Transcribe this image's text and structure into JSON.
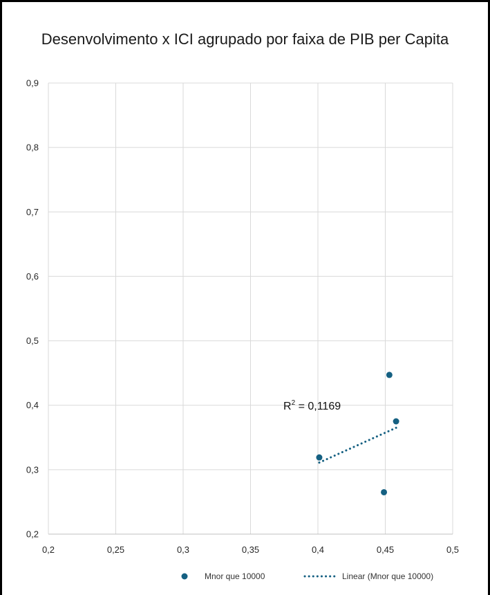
{
  "chart_data": {
    "type": "scatter",
    "title": "Desenvolvimento x ICI agrupado por faixa de PIB per Capita",
    "xlim": [
      0.2,
      0.5
    ],
    "ylim": [
      0.2,
      0.9
    ],
    "x_ticks": [
      "0,2",
      "0,25",
      "0,3",
      "0,35",
      "0,4",
      "0,45",
      "0,5"
    ],
    "y_ticks": [
      "0,2",
      "0,3",
      "0,4",
      "0,5",
      "0,6",
      "0,7",
      "0,8",
      "0,9"
    ],
    "x_tick_values": [
      0.2,
      0.25,
      0.3,
      0.35,
      0.4,
      0.45,
      0.5
    ],
    "y_tick_values": [
      0.2,
      0.3,
      0.4,
      0.5,
      0.6,
      0.7,
      0.8,
      0.9
    ],
    "grid": true,
    "series": [
      {
        "name": "Mnor que 10000",
        "color": "#156082",
        "points": [
          {
            "x": 0.401,
            "y": 0.319
          },
          {
            "x": 0.449,
            "y": 0.265
          },
          {
            "x": 0.453,
            "y": 0.447
          },
          {
            "x": 0.458,
            "y": 0.375
          }
        ]
      }
    ],
    "trendline": {
      "name": "Linear (Mnor que 10000)",
      "type": "linear",
      "color": "#156082",
      "from": {
        "x": 0.401,
        "y": 0.311
      },
      "to": {
        "x": 0.458,
        "y": 0.365
      },
      "r2_label_prefix": "R",
      "r2_label_sup": "2",
      "r2_label_value": " = 0,1169"
    },
    "legend_position": "bottom"
  }
}
